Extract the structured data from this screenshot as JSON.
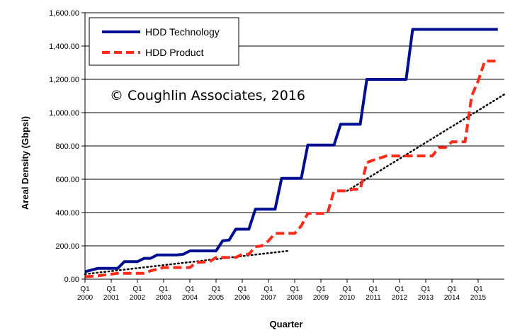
{
  "chart_data": {
    "type": "line",
    "title": "",
    "xlabel": "Quarter",
    "ylabel": "Areal Density (Gbpsi)",
    "annotation": "© Coughlin Associates, 2016",
    "ylim": [
      0,
      1600
    ],
    "yticks": [
      "0.00",
      "200.00",
      "400.00",
      "600.00",
      "800.00",
      "1,000.00",
      "1,200.00",
      "1,400.00",
      "1,600.00"
    ],
    "xlim": [
      2000.0,
      2016.0
    ],
    "xticks": [
      {
        "q": "Q1",
        "year": "2000",
        "x": 2000.0
      },
      {
        "q": "Q1",
        "year": "2001",
        "x": 2001.0
      },
      {
        "q": "Q1",
        "year": "2002",
        "x": 2002.0
      },
      {
        "q": "Q1",
        "year": "2003",
        "x": 2003.0
      },
      {
        "q": "Q1",
        "year": "2004",
        "x": 2004.0
      },
      {
        "q": "Q1",
        "year": "2005",
        "x": 2005.0
      },
      {
        "q": "Q1",
        "year": "2006",
        "x": 2006.0
      },
      {
        "q": "Q1",
        "year": "2007",
        "x": 2007.0
      },
      {
        "q": "Q1",
        "year": "2008",
        "x": 2008.0
      },
      {
        "q": "Q1",
        "year": "2009",
        "x": 2009.0
      },
      {
        "q": "Q1",
        "year": "2010",
        "x": 2010.0
      },
      {
        "q": "Q1",
        "year": "2011",
        "x": 2011.0
      },
      {
        "q": "Q1",
        "year": "2012",
        "x": 2012.0
      },
      {
        "q": "Q1",
        "year": "2013",
        "x": 2013.0
      },
      {
        "q": "Q1",
        "year": "2014",
        "x": 2014.0
      },
      {
        "q": "Q1",
        "year": "2015",
        "x": 2015.0
      }
    ],
    "grid": "horizontal",
    "legend_position": "top-left",
    "series": [
      {
        "name": "HDD Technology",
        "color": "#000f8f",
        "style": "solid",
        "points": [
          [
            2000.0,
            45
          ],
          [
            2000.25,
            55
          ],
          [
            2000.5,
            65
          ],
          [
            2001.25,
            65
          ],
          [
            2001.5,
            105
          ],
          [
            2002.0,
            105
          ],
          [
            2002.25,
            125
          ],
          [
            2002.5,
            125
          ],
          [
            2002.75,
            145
          ],
          [
            2003.5,
            145
          ],
          [
            2003.75,
            150
          ],
          [
            2004.0,
            170
          ],
          [
            2005.0,
            170
          ],
          [
            2005.25,
            230
          ],
          [
            2005.5,
            235
          ],
          [
            2005.75,
            300
          ],
          [
            2006.25,
            300
          ],
          [
            2006.5,
            420
          ],
          [
            2007.25,
            420
          ],
          [
            2007.5,
            605
          ],
          [
            2008.25,
            605
          ],
          [
            2008.5,
            805
          ],
          [
            2009.5,
            805
          ],
          [
            2009.75,
            930
          ],
          [
            2010.5,
            930
          ],
          [
            2010.75,
            1200
          ],
          [
            2012.25,
            1200
          ],
          [
            2012.5,
            1500
          ],
          [
            2015.75,
            1500
          ]
        ]
      },
      {
        "name": "HDD Product",
        "color": "#ff2a1a",
        "style": "dashed",
        "points": [
          [
            2000.0,
            15
          ],
          [
            2000.5,
            20
          ],
          [
            2001.0,
            30
          ],
          [
            2001.25,
            35
          ],
          [
            2002.25,
            35
          ],
          [
            2002.5,
            50
          ],
          [
            2002.75,
            60
          ],
          [
            2003.0,
            70
          ],
          [
            2004.0,
            70
          ],
          [
            2004.25,
            100
          ],
          [
            2004.75,
            105
          ],
          [
            2005.0,
            130
          ],
          [
            2005.75,
            130
          ],
          [
            2006.0,
            150
          ],
          [
            2006.25,
            150
          ],
          [
            2006.5,
            195
          ],
          [
            2006.75,
            200
          ],
          [
            2007.0,
            230
          ],
          [
            2007.25,
            275
          ],
          [
            2008.0,
            275
          ],
          [
            2008.25,
            320
          ],
          [
            2008.5,
            395
          ],
          [
            2009.25,
            395
          ],
          [
            2009.5,
            530
          ],
          [
            2010.0,
            530
          ],
          [
            2010.25,
            540
          ],
          [
            2010.5,
            540
          ],
          [
            2010.75,
            700
          ],
          [
            2011.0,
            715
          ],
          [
            2011.5,
            740
          ],
          [
            2013.25,
            740
          ],
          [
            2013.5,
            790
          ],
          [
            2013.75,
            790
          ],
          [
            2014.0,
            825
          ],
          [
            2014.5,
            825
          ],
          [
            2014.75,
            1100
          ],
          [
            2015.0,
            1190
          ],
          [
            2015.25,
            1310
          ],
          [
            2015.75,
            1310
          ]
        ]
      }
    ],
    "trendlines": [
      {
        "style": "dotted",
        "color": "#000000",
        "points": [
          [
            2000.0,
            30
          ],
          [
            2007.75,
            170
          ]
        ]
      },
      {
        "style": "dotted",
        "color": "#000000",
        "points": [
          [
            2010.0,
            530
          ],
          [
            2016.0,
            1110
          ]
        ]
      }
    ]
  }
}
